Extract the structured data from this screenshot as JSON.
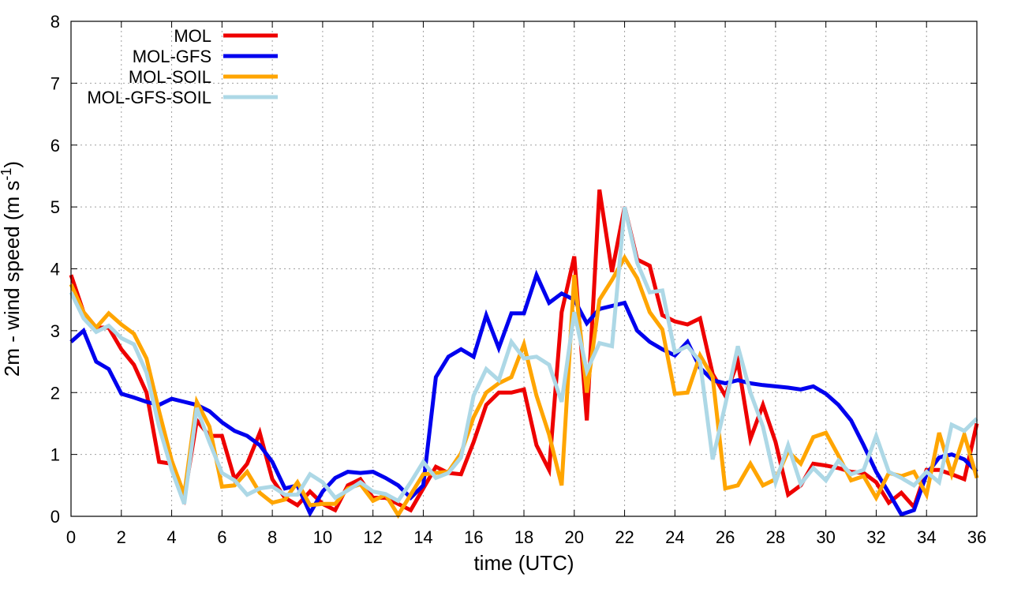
{
  "chart_data": {
    "type": "line",
    "title": "",
    "xlabel": "time (UTC)",
    "ylabel": "2m - wind speed  (m s",
    "ylabel_sup": "-1",
    "ylabel_close": ")",
    "xlim": [
      0,
      36
    ],
    "ylim": [
      0,
      8
    ],
    "xticks": [
      0,
      2,
      4,
      6,
      8,
      10,
      12,
      14,
      16,
      18,
      20,
      22,
      24,
      26,
      28,
      30,
      32,
      34,
      36
    ],
    "yticks": [
      0,
      1,
      2,
      3,
      4,
      5,
      6,
      7,
      8
    ],
    "grid": true,
    "legend_position": "top-left",
    "x": [
      0,
      0.5,
      1,
      1.5,
      2,
      2.5,
      3,
      3.5,
      4,
      4.5,
      5,
      5.5,
      6,
      6.5,
      7,
      7.5,
      8,
      8.5,
      9,
      9.5,
      10,
      10.5,
      11,
      11.5,
      12,
      12.5,
      13,
      13.5,
      14,
      14.5,
      15,
      15.5,
      16,
      16.5,
      17,
      17.5,
      18,
      18.5,
      19,
      19.5,
      20,
      20.5,
      21,
      21.5,
      22,
      22.5,
      23,
      23.5,
      24,
      24.5,
      25,
      25.5,
      26,
      26.5,
      27,
      27.5,
      28,
      28.5,
      29,
      29.5,
      30,
      30.5,
      31,
      31.5,
      32,
      32.5,
      33,
      33.5,
      34,
      34.5,
      35,
      35.5,
      36
    ],
    "series": [
      {
        "name": "MOL",
        "color": "#ee0000",
        "values": [
          3.9,
          3.3,
          3.05,
          3.05,
          2.7,
          2.45,
          2.0,
          0.88,
          0.85,
          0.3,
          1.55,
          1.3,
          1.3,
          0.6,
          0.85,
          1.35,
          0.6,
          0.3,
          0.18,
          0.4,
          0.2,
          0.1,
          0.5,
          0.6,
          0.3,
          0.3,
          0.2,
          0.1,
          0.45,
          0.8,
          0.7,
          0.68,
          1.2,
          1.8,
          2.0,
          2.0,
          2.05,
          1.15,
          0.75,
          3.3,
          4.2,
          1.55,
          5.28,
          3.95,
          5.0,
          4.15,
          4.05,
          3.25,
          3.15,
          3.1,
          3.2,
          2.3,
          1.95,
          2.5,
          1.25,
          1.8,
          1.2,
          0.35,
          0.5,
          0.85,
          0.82,
          0.78,
          0.72,
          0.7,
          0.55,
          0.22,
          0.38,
          0.15,
          0.75,
          0.75,
          0.68,
          0.6,
          1.5
        ]
      },
      {
        "name": "MOL-GFS",
        "color": "#0000ee",
        "values": [
          2.82,
          3.0,
          2.5,
          2.38,
          1.98,
          1.92,
          1.85,
          1.8,
          1.9,
          1.85,
          1.8,
          1.7,
          1.52,
          1.38,
          1.3,
          1.15,
          0.88,
          0.45,
          0.5,
          0.05,
          0.4,
          0.62,
          0.72,
          0.7,
          0.72,
          0.62,
          0.5,
          0.3,
          0.5,
          2.25,
          2.58,
          2.7,
          2.58,
          3.25,
          2.72,
          3.28,
          3.28,
          3.9,
          3.45,
          3.6,
          3.5,
          3.12,
          3.35,
          3.4,
          3.45,
          3.0,
          2.82,
          2.7,
          2.6,
          2.82,
          2.4,
          2.2,
          2.15,
          2.2,
          2.15,
          2.12,
          2.1,
          2.08,
          2.05,
          2.1,
          1.98,
          1.8,
          1.55,
          1.15,
          0.72,
          0.38,
          0.03,
          0.1,
          0.68,
          0.95,
          1.0,
          0.92,
          0.72
        ]
      },
      {
        "name": "MOL-SOIL",
        "color": "#ffa500",
        "values": [
          3.75,
          3.3,
          3.05,
          3.28,
          3.1,
          2.95,
          2.55,
          1.7,
          0.9,
          0.35,
          1.85,
          1.45,
          0.48,
          0.5,
          0.72,
          0.38,
          0.22,
          0.27,
          0.55,
          0.18,
          0.2,
          0.2,
          0.45,
          0.52,
          0.25,
          0.35,
          0.02,
          0.35,
          0.68,
          0.7,
          0.72,
          1.02,
          1.6,
          2.0,
          2.15,
          2.25,
          2.78,
          1.95,
          1.32,
          0.5,
          3.9,
          2.0,
          3.5,
          3.82,
          4.18,
          3.85,
          3.3,
          3.02,
          1.98,
          2.0,
          2.6,
          2.25,
          0.45,
          0.5,
          0.85,
          0.5,
          0.6,
          1.05,
          0.85,
          1.28,
          1.35,
          0.98,
          0.58,
          0.65,
          0.3,
          0.7,
          0.65,
          0.72,
          0.35,
          1.35,
          0.68,
          1.32,
          0.62
        ]
      },
      {
        "name": "MOL-GFS-SOIL",
        "color": "#add8e6",
        "values": [
          3.62,
          3.2,
          2.98,
          3.08,
          2.88,
          2.78,
          2.32,
          1.45,
          0.75,
          0.2,
          1.75,
          1.2,
          0.7,
          0.58,
          0.35,
          0.45,
          0.48,
          0.35,
          0.35,
          0.68,
          0.55,
          0.3,
          0.42,
          0.55,
          0.4,
          0.36,
          0.25,
          0.55,
          0.88,
          0.62,
          0.7,
          0.95,
          1.95,
          2.38,
          2.2,
          2.82,
          2.55,
          2.58,
          2.45,
          1.85,
          3.3,
          2.35,
          2.8,
          2.75,
          5.0,
          4.1,
          3.62,
          3.65,
          2.65,
          2.75,
          2.5,
          0.92,
          1.8,
          2.75,
          2.0,
          1.45,
          0.55,
          1.15,
          0.52,
          0.78,
          0.58,
          0.9,
          0.68,
          0.75,
          1.3,
          0.72,
          0.62,
          0.5,
          0.72,
          0.55,
          1.48,
          1.38,
          1.58
        ]
      }
    ]
  }
}
